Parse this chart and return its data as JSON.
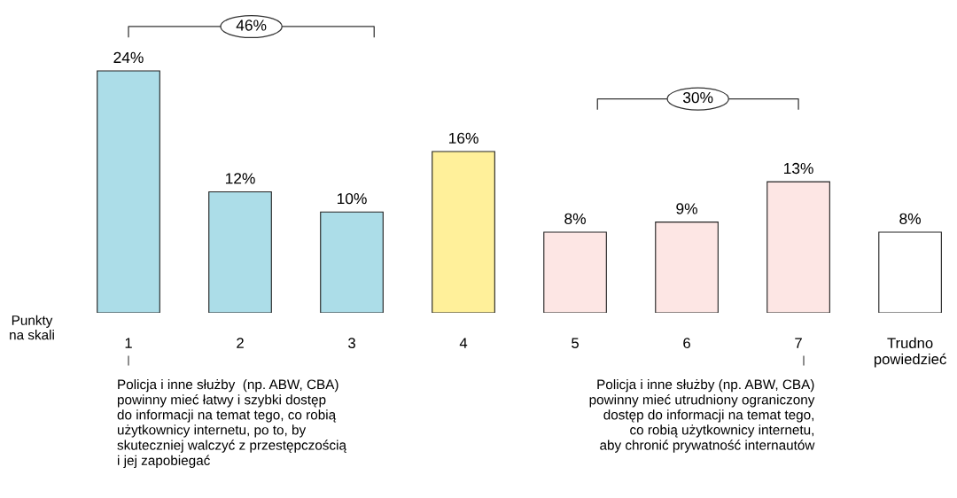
{
  "chart_data": {
    "type": "bar",
    "categories": [
      "1",
      "2",
      "3",
      "4",
      "5",
      "6",
      "7",
      "Trudno\npowiedzieć"
    ],
    "values": [
      24,
      12,
      10,
      16,
      8,
      9,
      13,
      8
    ],
    "value_labels": [
      "24%",
      "12%",
      "10%",
      "16%",
      "8%",
      "9%",
      "13%",
      "8%"
    ],
    "colors": [
      "#acdde8",
      "#acdde8",
      "#acdde8",
      "#fff09a",
      "#fde6e4",
      "#fde6e4",
      "#fde6e4",
      "#ffffff"
    ],
    "annotations": [
      "46%",
      "30%",
      "Punkty\nna skali",
      "Policja i inne służby  (np. ABW, CBA)\npowinny mieć łatwy i szybki dostęp\ndo informacji na temat tego, co robią\nużytkownicy internetu, po to, by\nskuteczniej walczyć z przestępczością\ni jej zapobiegać",
      "Policja i inne służby (np. ABW, CBA)\npowinny mieć utrudniony ograniczony\ndostęp do informacji na temat tego,\nco robią użytkownicy internetu,\naby chronić prywatność internautów"
    ],
    "grid": false,
    "legend": false
  }
}
